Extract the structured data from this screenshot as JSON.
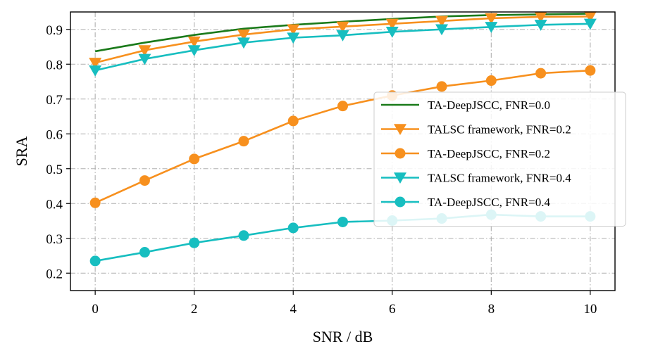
{
  "chart_data": {
    "type": "line",
    "title": "",
    "xlabel": "SNR / dB",
    "ylabel": "SRA",
    "xlim": [
      -0.5,
      10.5
    ],
    "ylim": [
      0.15,
      0.95
    ],
    "xticks": [
      0,
      2,
      4,
      6,
      8,
      10
    ],
    "yticks": [
      0.2,
      0.3,
      0.4,
      0.5,
      0.6,
      0.7,
      0.8,
      0.9
    ],
    "grid": true,
    "legend_position": "center-right",
    "series": [
      {
        "name": "TA-DeepJSCC, FNR=0.0",
        "color": "#1a7a1a",
        "marker": "none",
        "x": [
          0,
          1,
          2,
          3,
          4,
          5,
          6,
          7,
          8,
          9,
          10
        ],
        "values": [
          0.837,
          0.862,
          0.884,
          0.902,
          0.913,
          0.922,
          0.93,
          0.937,
          0.941,
          0.943,
          0.945
        ]
      },
      {
        "name": "TALSC framework, FNR=0.2",
        "color": "#f7901e",
        "marker": "triangle-down",
        "x": [
          0,
          1,
          2,
          3,
          4,
          5,
          6,
          7,
          8,
          9,
          10
        ],
        "values": [
          0.804,
          0.84,
          0.865,
          0.885,
          0.9,
          0.908,
          0.916,
          0.924,
          0.932,
          0.936,
          0.937
        ]
      },
      {
        "name": "TA-DeepJSCC, FNR=0.2",
        "color": "#f7901e",
        "marker": "circle",
        "x": [
          0,
          1,
          2,
          3,
          4,
          5,
          6,
          7,
          8,
          9,
          10
        ],
        "values": [
          0.402,
          0.466,
          0.528,
          0.579,
          0.637,
          0.68,
          0.71,
          0.736,
          0.753,
          0.774,
          0.782
        ]
      },
      {
        "name": "TALSC framework, FNR=0.4",
        "color": "#17bec0",
        "marker": "triangle-down",
        "x": [
          0,
          1,
          2,
          3,
          4,
          5,
          6,
          7,
          8,
          9,
          10
        ],
        "values": [
          0.782,
          0.815,
          0.84,
          0.862,
          0.876,
          0.883,
          0.893,
          0.9,
          0.907,
          0.913,
          0.916
        ]
      },
      {
        "name": "TA-DeepJSCC, FNR=0.4",
        "color": "#17bec0",
        "marker": "circle",
        "x": [
          0,
          1,
          2,
          3,
          4,
          5,
          6,
          7,
          8,
          9,
          10
        ],
        "values": [
          0.235,
          0.26,
          0.287,
          0.308,
          0.33,
          0.347,
          0.351,
          0.357,
          0.368,
          0.363,
          0.363
        ]
      }
    ]
  }
}
